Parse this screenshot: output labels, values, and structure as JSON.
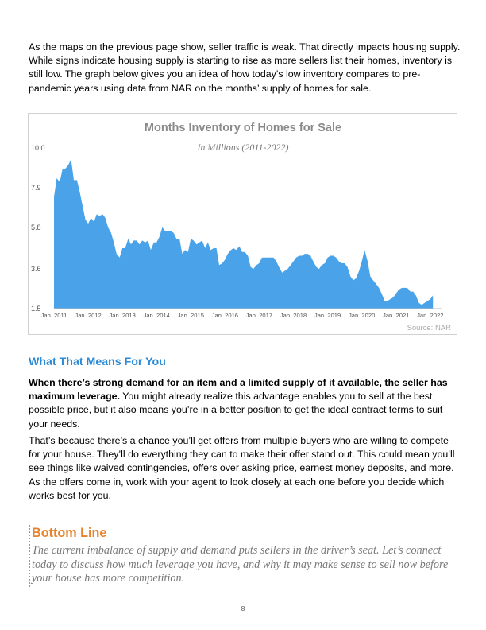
{
  "intro": "As the maps on the previous page show, seller traffic is weak. That directly impacts housing supply. While signs indicate housing supply is starting to rise as more sellers list their homes, inventory is still low. The graph below gives you an idea of how today’s low inventory compares to pre-pandemic years using data from NAR on the months’ supply of homes for sale.",
  "chart_data": {
    "type": "area",
    "title": "Months Inventory of Homes for Sale",
    "subtitle": "In Millions (2011-2022)",
    "source": "Source: NAR",
    "ylim": [
      1.5,
      10.0
    ],
    "y_ticks": [
      "10.0",
      "7.9",
      "5.8",
      "3.6",
      "1.5"
    ],
    "y_tick_values": [
      10.0,
      7.9,
      5.8,
      3.6,
      1.5
    ],
    "x_ticks": [
      "Jan. 2011",
      "Jan. 2012",
      "Jan. 2013",
      "Jan. 2014",
      "Jan. 2015",
      "Jan. 2016",
      "Jan. 2017",
      "Jan. 2018",
      "Jan. 2019",
      "Jan. 2020",
      "Jan. 2021",
      "Jan. 2022"
    ],
    "x_start": 2011.0,
    "x_end": 2022.33,
    "fill_color": "#4aa3e8",
    "series": [
      {
        "values": [
          [
            2011.0,
            7.4
          ],
          [
            2011.08,
            8.4
          ],
          [
            2011.17,
            8.2
          ],
          [
            2011.25,
            8.9
          ],
          [
            2011.33,
            8.9
          ],
          [
            2011.42,
            9.1
          ],
          [
            2011.5,
            9.4
          ],
          [
            2011.58,
            8.3
          ],
          [
            2011.67,
            8.3
          ],
          [
            2011.75,
            7.7
          ],
          [
            2011.83,
            7.0
          ],
          [
            2011.92,
            6.2
          ],
          [
            2012.0,
            6.0
          ],
          [
            2012.08,
            6.3
          ],
          [
            2012.17,
            6.1
          ],
          [
            2012.25,
            6.5
          ],
          [
            2012.33,
            6.4
          ],
          [
            2012.42,
            6.5
          ],
          [
            2012.5,
            6.3
          ],
          [
            2012.58,
            5.8
          ],
          [
            2012.67,
            5.5
          ],
          [
            2012.75,
            5.0
          ],
          [
            2012.83,
            4.4
          ],
          [
            2012.92,
            4.2
          ],
          [
            2013.0,
            4.7
          ],
          [
            2013.08,
            4.7
          ],
          [
            2013.17,
            5.2
          ],
          [
            2013.25,
            4.9
          ],
          [
            2013.33,
            5.1
          ],
          [
            2013.42,
            5.1
          ],
          [
            2013.5,
            4.9
          ],
          [
            2013.58,
            5.1
          ],
          [
            2013.67,
            5.0
          ],
          [
            2013.75,
            5.1
          ],
          [
            2013.83,
            4.6
          ],
          [
            2013.92,
            5.0
          ],
          [
            2014.0,
            5.0
          ],
          [
            2014.08,
            5.3
          ],
          [
            2014.17,
            5.8
          ],
          [
            2014.25,
            5.6
          ],
          [
            2014.33,
            5.6
          ],
          [
            2014.42,
            5.6
          ],
          [
            2014.5,
            5.5
          ],
          [
            2014.58,
            5.2
          ],
          [
            2014.67,
            5.2
          ],
          [
            2014.75,
            4.4
          ],
          [
            2014.83,
            4.6
          ],
          [
            2014.92,
            4.5
          ],
          [
            2015.0,
            5.2
          ],
          [
            2015.08,
            5.1
          ],
          [
            2015.17,
            4.9
          ],
          [
            2015.25,
            5.0
          ],
          [
            2015.33,
            5.1
          ],
          [
            2015.42,
            4.7
          ],
          [
            2015.5,
            5.0
          ],
          [
            2015.58,
            4.6
          ],
          [
            2015.67,
            4.7
          ],
          [
            2015.75,
            4.7
          ],
          [
            2015.83,
            3.8
          ],
          [
            2015.92,
            3.9
          ],
          [
            2016.0,
            4.1
          ],
          [
            2016.08,
            4.4
          ],
          [
            2016.17,
            4.6
          ],
          [
            2016.25,
            4.7
          ],
          [
            2016.33,
            4.6
          ],
          [
            2016.42,
            4.8
          ],
          [
            2016.5,
            4.5
          ],
          [
            2016.58,
            4.5
          ],
          [
            2016.67,
            4.3
          ],
          [
            2016.75,
            3.7
          ],
          [
            2016.83,
            3.6
          ],
          [
            2016.92,
            3.8
          ],
          [
            2017.0,
            3.9
          ],
          [
            2017.08,
            4.2
          ],
          [
            2017.17,
            4.2
          ],
          [
            2017.25,
            4.2
          ],
          [
            2017.33,
            4.2
          ],
          [
            2017.42,
            4.2
          ],
          [
            2017.5,
            4.0
          ],
          [
            2017.58,
            3.7
          ],
          [
            2017.67,
            3.4
          ],
          [
            2017.75,
            3.5
          ],
          [
            2017.83,
            3.6
          ],
          [
            2017.92,
            3.8
          ],
          [
            2018.0,
            4.0
          ],
          [
            2018.08,
            4.2
          ],
          [
            2018.17,
            4.3
          ],
          [
            2018.25,
            4.3
          ],
          [
            2018.33,
            4.4
          ],
          [
            2018.42,
            4.4
          ],
          [
            2018.5,
            4.3
          ],
          [
            2018.58,
            4.0
          ],
          [
            2018.67,
            3.7
          ],
          [
            2018.75,
            3.6
          ],
          [
            2018.83,
            3.8
          ],
          [
            2018.92,
            3.9
          ],
          [
            2019.0,
            4.2
          ],
          [
            2019.08,
            4.3
          ],
          [
            2019.17,
            4.3
          ],
          [
            2019.25,
            4.2
          ],
          [
            2019.33,
            4.0
          ],
          [
            2019.42,
            3.9
          ],
          [
            2019.5,
            3.9
          ],
          [
            2019.58,
            3.7
          ],
          [
            2019.67,
            3.2
          ],
          [
            2019.75,
            3.0
          ],
          [
            2019.83,
            3.1
          ],
          [
            2019.92,
            3.5
          ],
          [
            2020.0,
            4.0
          ],
          [
            2020.08,
            4.6
          ],
          [
            2020.17,
            4.0
          ],
          [
            2020.25,
            3.2
          ],
          [
            2020.33,
            3.0
          ],
          [
            2020.42,
            2.8
          ],
          [
            2020.5,
            2.6
          ],
          [
            2020.58,
            2.3
          ],
          [
            2020.67,
            1.9
          ],
          [
            2020.75,
            1.9
          ],
          [
            2020.83,
            2.0
          ],
          [
            2020.92,
            2.1
          ],
          [
            2021.0,
            2.3
          ],
          [
            2021.08,
            2.5
          ],
          [
            2021.17,
            2.6
          ],
          [
            2021.25,
            2.6
          ],
          [
            2021.33,
            2.6
          ],
          [
            2021.42,
            2.4
          ],
          [
            2021.5,
            2.4
          ],
          [
            2021.58,
            2.2
          ],
          [
            2021.67,
            1.8
          ],
          [
            2021.75,
            1.7
          ],
          [
            2021.83,
            1.8
          ],
          [
            2021.92,
            1.9
          ],
          [
            2022.0,
            2.0
          ],
          [
            2022.08,
            2.2
          ]
        ]
      }
    ]
  },
  "section_heading": "What That Means For You",
  "para1_bold": "When there’s strong demand for an item and a limited supply of it available, the seller has maximum leverage.",
  "para1_rest": " You might already realize this advantage enables you to sell at the best possible price, but it also means you’re in a better position to get the ideal contract terms to suit your needs.",
  "para2": "That’s because there’s a chance you’ll get offers from multiple buyers who are willing to compete for your house. They’ll do everything they can to make their offer stand out. This could mean you’ll see things like waived contingencies, offers over asking price, earnest money deposits, and more. As the offers come in, work with your agent to look closely at each one before you decide which works best for you.",
  "bottom_line": {
    "title": "Bottom Line",
    "text": "The current imbalance of supply and demand puts sellers in the driver’s seat. Let’s connect today to discuss how much leverage you have, and why it may make sense to sell now before your house has more competition."
  },
  "page_number": "8"
}
